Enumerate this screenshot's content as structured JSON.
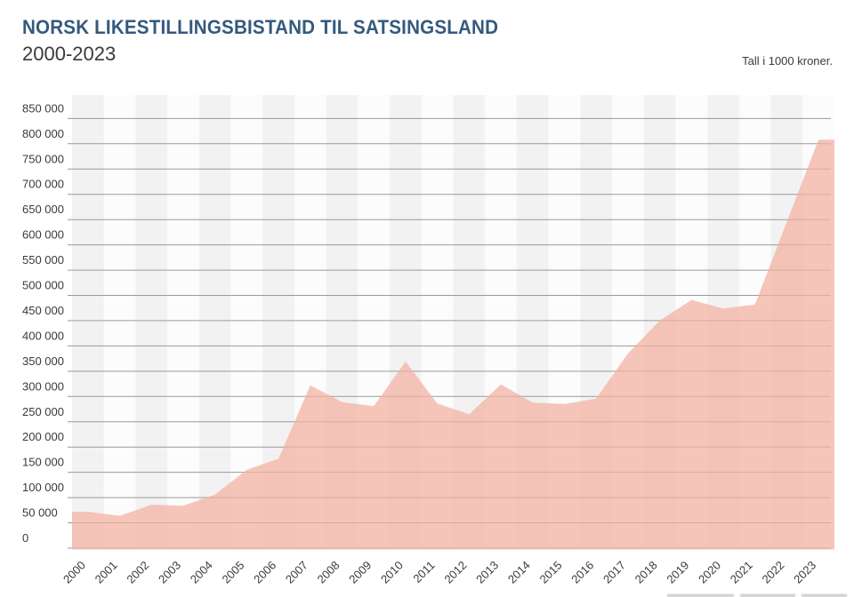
{
  "header": {
    "title": "NORSK LIKESTILLINGSBISTAND TIL SATSINGSLAND",
    "subtitle": "2000-2023",
    "unit_note": "Tall i 1000 kroner."
  },
  "chart_data": {
    "type": "area",
    "title": "NORSK LIKESTILLINGSBISTAND TIL SATSINGSLAND",
    "subtitle": "2000-2023",
    "unit_note": "Tall i 1000 kroner.",
    "x": [
      2000,
      2001,
      2002,
      2003,
      2004,
      2005,
      2006,
      2007,
      2008,
      2009,
      2010,
      2011,
      2012,
      2013,
      2014,
      2015,
      2016,
      2017,
      2018,
      2019,
      2020,
      2021,
      2022,
      2023
    ],
    "values": [
      72000,
      64000,
      86000,
      84000,
      106000,
      155000,
      177000,
      322000,
      289000,
      281000,
      369000,
      286000,
      265000,
      324000,
      288000,
      285000,
      296000,
      385000,
      450000,
      491000,
      474000,
      482000,
      645000,
      808000
    ],
    "x_tick_labels": [
      "2000",
      "2001",
      "2002",
      "2003",
      "2004",
      "2005",
      "2006",
      "2007",
      "2008",
      "2009",
      "2010",
      "2011",
      "2012",
      "2013",
      "2014",
      "2015",
      "2016",
      "2017",
      "2018",
      "2019",
      "2020",
      "2021",
      "2022",
      "2023"
    ],
    "y_tick_labels": [
      "0",
      "50 000",
      "100 000",
      "150 000",
      "200 000",
      "250 000",
      "300 000",
      "350 000",
      "400 000",
      "450 000",
      "500 000",
      "550 000",
      "600 000",
      "650 000",
      "700 000",
      "750 000",
      "800 000",
      "850 000"
    ],
    "ylim": [
      0,
      850000
    ],
    "y_tick_step": 50000,
    "grid": "horizontal gridlines at every 50 000, drawn faintly through the area fill",
    "background": "alternating vertical year bands, grey on even years",
    "legend": "none",
    "colors": {
      "title_text": "#35597e",
      "text": "#3a3a3a",
      "area_fill": "#f3b09f",
      "area_opacity": 0.72,
      "gridline": "#9a9a9a",
      "stripe_even": "#f2f2f2",
      "stripe_odd": "#fcfcfc",
      "credit_bar": "#c7c7c7"
    }
  }
}
